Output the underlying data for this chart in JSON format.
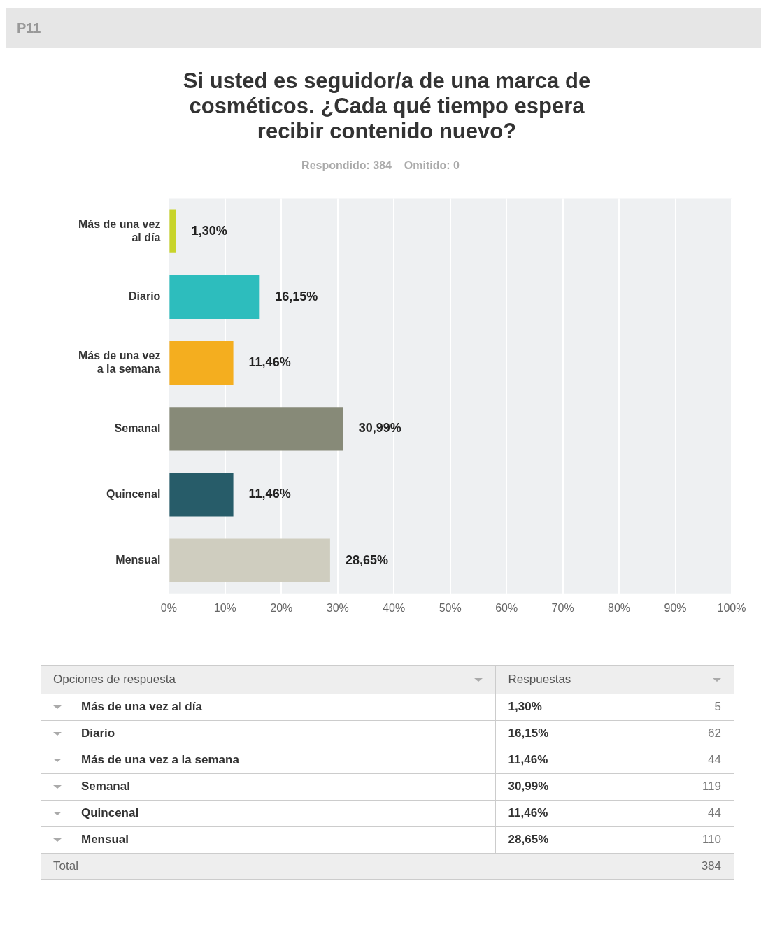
{
  "chart_data": {
    "type": "bar",
    "orientation": "horizontal",
    "title": "Si usted es seguidor/a de una marca de cosméticos. ¿Cada qué tiempo espera recibir contenido nuevo?",
    "subtitle": "Respondido: 384    Omitido: 0",
    "categories": [
      "Más de una vez al día",
      "Diario",
      "Más de una vez a la semana",
      "Semanal",
      "Quincenal",
      "Mensual"
    ],
    "values": [
      1.3,
      16.15,
      11.46,
      30.99,
      11.46,
      28.65
    ],
    "value_labels": [
      "1,30%",
      "16,15%",
      "11,46%",
      "30,99%",
      "11,46%",
      "28,65%"
    ],
    "colors": [
      "#c8d42b",
      "#2dbdbd",
      "#f4ae1f",
      "#878a78",
      "#275c69",
      "#cfcdbf"
    ],
    "xlim": [
      0,
      100
    ],
    "xticks": [
      {
        "value": 0,
        "label": "0%"
      },
      {
        "value": 10,
        "label": "10%"
      },
      {
        "value": 20,
        "label": "20%"
      },
      {
        "value": 30,
        "label": "30%"
      },
      {
        "value": 40,
        "label": "40%"
      },
      {
        "value": 50,
        "label": "50%"
      },
      {
        "value": 60,
        "label": "60%"
      },
      {
        "value": 70,
        "label": "70%"
      },
      {
        "value": 80,
        "label": "80%"
      },
      {
        "value": 90,
        "label": "90%"
      },
      {
        "value": 100,
        "label": "100%"
      }
    ],
    "grid": "x",
    "legend": false,
    "annotations": [
      "P11",
      "Opciones de respuesta",
      "Respuestas",
      "5",
      "62",
      "44",
      "119",
      "44",
      "110",
      "Total",
      "384"
    ]
  }
}
